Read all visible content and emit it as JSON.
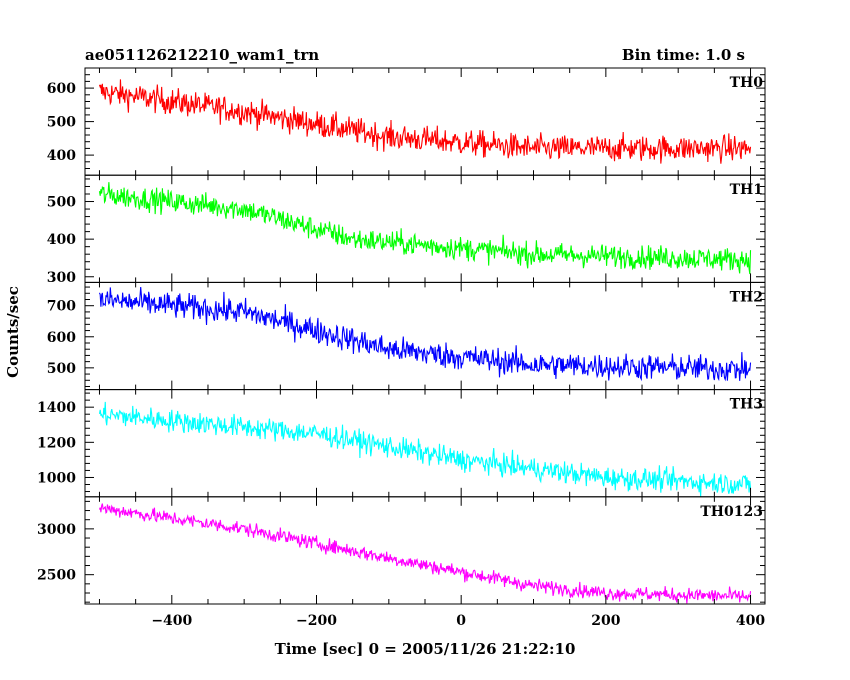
{
  "chart_data": {
    "type": "line",
    "title_left": "ae051126212210_wam1_trn",
    "title_right": "Bin time: 1.0 s",
    "xlabel": "Time [sec] 0 = 2005/11/26 21:22:10",
    "ylabel": "Counts/sec",
    "xlim": [
      -520,
      420
    ],
    "x_ticks": [
      -400,
      -200,
      0,
      200,
      400
    ],
    "x_tick_labels": [
      "−400",
      "−200",
      "0",
      "200",
      "400"
    ],
    "bin_time_s": 1.0,
    "data_range": [
      -500,
      400
    ],
    "panels": [
      {
        "name": "TH0",
        "color": "#ff0000",
        "ylim": [
          340,
          660
        ],
        "ticks": [
          400,
          500,
          600
        ],
        "trend": [
          [
            -500,
            590
          ],
          [
            -300,
            530
          ],
          [
            -100,
            455
          ],
          [
            100,
            420
          ],
          [
            400,
            420
          ]
        ],
        "noise": 28
      },
      {
        "name": "TH1",
        "color": "#00ff00",
        "ylim": [
          285,
          570
        ],
        "ticks": [
          300,
          400,
          500
        ],
        "trend": [
          [
            -500,
            520
          ],
          [
            -300,
            480
          ],
          [
            -150,
            400
          ],
          [
            100,
            360
          ],
          [
            400,
            345
          ]
        ],
        "noise": 22
      },
      {
        "name": "TH2",
        "color": "#0000ff",
        "ylim": [
          430,
          775
        ],
        "ticks": [
          500,
          600,
          700
        ],
        "trend": [
          [
            -500,
            720
          ],
          [
            -300,
            680
          ],
          [
            -100,
            560
          ],
          [
            100,
            510
          ],
          [
            400,
            495
          ]
        ],
        "noise": 30
      },
      {
        "name": "TH3",
        "color": "#00ffff",
        "ylim": [
          890,
          1500
        ],
        "ticks": [
          1000,
          1200,
          1400
        ],
        "trend": [
          [
            -500,
            1360
          ],
          [
            -200,
            1250
          ],
          [
            0,
            1100
          ],
          [
            200,
            1000
          ],
          [
            400,
            960
          ]
        ],
        "noise": 45
      },
      {
        "name": "TH0123",
        "color": "#ff00ff",
        "ylim": [
          2180,
          3350
        ],
        "ticks": [
          2500,
          3000
        ],
        "trend": [
          [
            -500,
            3230
          ],
          [
            -300,
            3000
          ],
          [
            -100,
            2680
          ],
          [
            100,
            2380
          ],
          [
            200,
            2300
          ],
          [
            400,
            2260
          ]
        ],
        "noise": 55
      }
    ]
  }
}
